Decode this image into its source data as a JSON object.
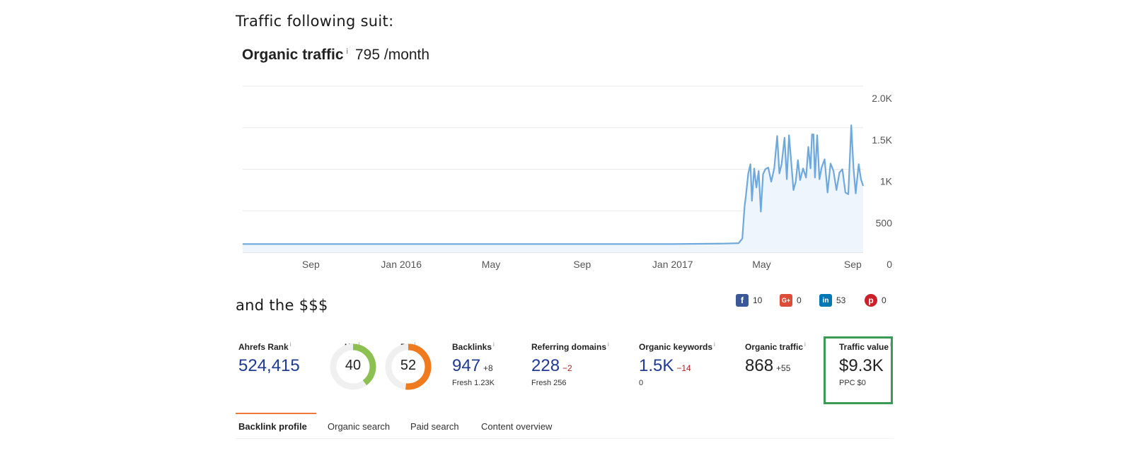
{
  "headings": {
    "traffic": "Traffic following suit:",
    "money": "and the $$$"
  },
  "organic": {
    "title": "Organic traffic",
    "info": "i",
    "value": "795 /month"
  },
  "chart_data": {
    "type": "area",
    "x_ticks": [
      "Sep",
      "Jan 2016",
      "May",
      "Sep",
      "Jan 2017",
      "May",
      "Sep"
    ],
    "y_ticks": [
      "0",
      "500",
      "1K",
      "1.5K",
      "2.0K"
    ],
    "ylim": [
      0,
      2000
    ],
    "x_start": "2015-06",
    "x_end": "2017-09-15",
    "grid": true,
    "colors": {
      "line": "#6fa8dc",
      "fill": "#eef5fd"
    },
    "series": [
      {
        "name": "Organic traffic",
        "points": [
          [
            "2015-06-01",
            100
          ],
          [
            "2016-01-01",
            100
          ],
          [
            "2016-09-01",
            100
          ],
          [
            "2017-01-01",
            100
          ],
          [
            "2017-03-10",
            105
          ],
          [
            "2017-03-31",
            110
          ],
          [
            "2017-04-05",
            165
          ],
          [
            "2017-04-08",
            550
          ],
          [
            "2017-04-10",
            690
          ],
          [
            "2017-04-13",
            950
          ],
          [
            "2017-04-16",
            1060
          ],
          [
            "2017-04-18",
            620
          ],
          [
            "2017-04-21",
            1010
          ],
          [
            "2017-04-24",
            780
          ],
          [
            "2017-04-27",
            980
          ],
          [
            "2017-04-30",
            490
          ],
          [
            "2017-05-03",
            940
          ],
          [
            "2017-05-06",
            1000
          ],
          [
            "2017-05-10",
            1020
          ],
          [
            "2017-05-14",
            850
          ],
          [
            "2017-05-18",
            1010
          ],
          [
            "2017-05-22",
            1400
          ],
          [
            "2017-05-25",
            950
          ],
          [
            "2017-05-28",
            1060
          ],
          [
            "2017-06-01",
            1380
          ],
          [
            "2017-06-04",
            880
          ],
          [
            "2017-06-07",
            1410
          ],
          [
            "2017-06-10",
            1080
          ],
          [
            "2017-06-13",
            750
          ],
          [
            "2017-06-16",
            850
          ],
          [
            "2017-06-19",
            1110
          ],
          [
            "2017-06-22",
            870
          ],
          [
            "2017-06-26",
            1010
          ],
          [
            "2017-06-30",
            900
          ],
          [
            "2017-07-03",
            1270
          ],
          [
            "2017-07-06",
            1010
          ],
          [
            "2017-07-08",
            1420
          ],
          [
            "2017-07-10",
            1420
          ],
          [
            "2017-07-12",
            900
          ],
          [
            "2017-07-15",
            1410
          ],
          [
            "2017-07-18",
            880
          ],
          [
            "2017-07-21",
            1020
          ],
          [
            "2017-07-25",
            1120
          ],
          [
            "2017-07-29",
            720
          ],
          [
            "2017-08-02",
            1070
          ],
          [
            "2017-08-06",
            980
          ],
          [
            "2017-08-10",
            750
          ],
          [
            "2017-08-14",
            960
          ],
          [
            "2017-08-18",
            1000
          ],
          [
            "2017-08-22",
            720
          ],
          [
            "2017-08-26",
            700
          ],
          [
            "2017-08-30",
            1530
          ],
          [
            "2017-09-02",
            1010
          ],
          [
            "2017-09-05",
            710
          ],
          [
            "2017-09-09",
            1060
          ],
          [
            "2017-09-12",
            880
          ],
          [
            "2017-09-15",
            800
          ]
        ]
      }
    ]
  },
  "social": [
    {
      "icon": "facebook-icon",
      "glyph": "f",
      "count": "10"
    },
    {
      "icon": "google-plus-icon",
      "glyph": "G+",
      "count": "0"
    },
    {
      "icon": "linkedin-icon",
      "glyph": "in",
      "count": "53"
    },
    {
      "icon": "pinterest-icon",
      "glyph": "p",
      "count": "0"
    }
  ],
  "metrics": {
    "ahrefs_rank": {
      "label": "Ahrefs Rank",
      "value": "524,415"
    },
    "ur": {
      "label": "UR",
      "value": "40",
      "level": 40,
      "color": "#8cc152"
    },
    "dr": {
      "label": "DR",
      "value": "52",
      "level": 52,
      "color": "#f07b1f"
    },
    "backlinks": {
      "label": "Backlinks",
      "value": "947",
      "delta": "+8",
      "sub": "Fresh 1.23K"
    },
    "referring_domains": {
      "label": "Referring domains",
      "value": "228",
      "delta": "−2",
      "sub": "Fresh 256"
    },
    "organic_keywords": {
      "label": "Organic keywords",
      "value": "1.5K",
      "delta": "−14",
      "sub": "0"
    },
    "organic_traffic": {
      "label": "Organic traffic",
      "value": "868",
      "delta": "+55"
    },
    "traffic_value": {
      "label": "Traffic value",
      "value": "$9.3K",
      "sub": "PPC $0"
    }
  },
  "tabs": [
    "Backlink profile",
    "Organic search",
    "Paid search",
    "Content overview"
  ]
}
